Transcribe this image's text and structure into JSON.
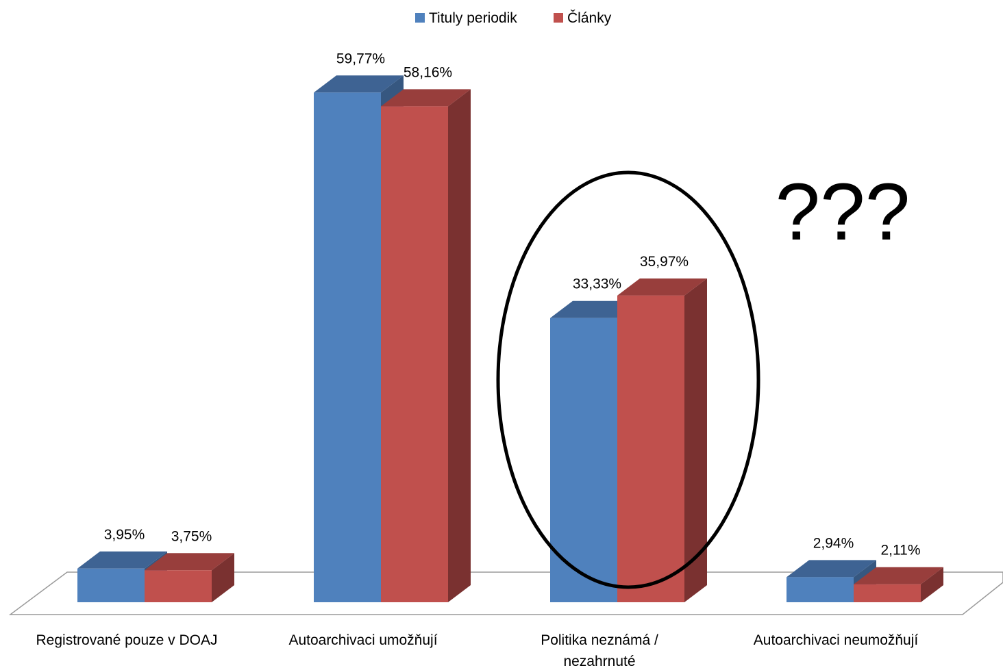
{
  "chart_data": {
    "type": "bar",
    "style": "3d-clustered-column",
    "categories": [
      [
        "Registrované pouze v DOAJ"
      ],
      [
        "Autoarchivaci umožňují"
      ],
      [
        "Politika neznámá /",
        "nezahrnuté"
      ],
      [
        "Autoarchivaci neumožňují"
      ]
    ],
    "series": [
      {
        "name": "Tituly periodik",
        "color": "#4F81BD",
        "top_color": "#3E6393",
        "side_color": "#365780",
        "values": [
          3.95,
          59.77,
          33.33,
          2.94
        ],
        "labels": [
          "3,95%",
          "59,77%",
          "33,33%",
          "2,94%"
        ]
      },
      {
        "name": "Články",
        "color": "#C0504D",
        "top_color": "#983E3C",
        "side_color": "#7A3130",
        "values": [
          3.75,
          58.16,
          35.97,
          2.11
        ],
        "labels": [
          "3,75%",
          "58,16%",
          "35,97%",
          "2,11%"
        ]
      }
    ],
    "ylim": [
      0,
      60
    ],
    "legend": "top",
    "gridlines": false,
    "highlighted_category": [
      "Politika neznámá /",
      "nezahrnuté"
    ],
    "annotation": "???"
  }
}
